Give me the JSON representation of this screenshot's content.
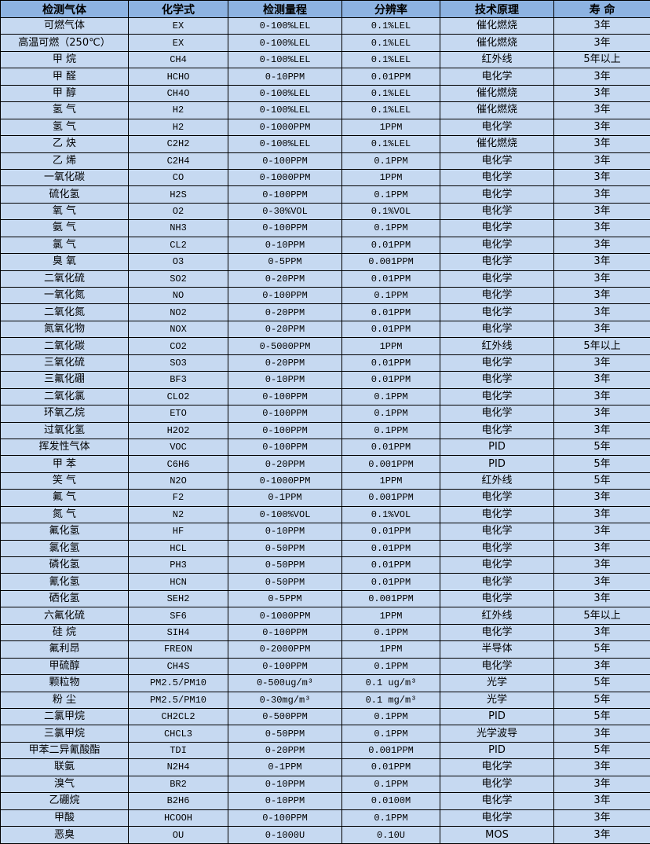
{
  "colors": {
    "header_bg": "#8db3e2",
    "row_bg": "#c6d9f1",
    "border": "#000000"
  },
  "table": {
    "headers": [
      "检测气体",
      "化学式",
      "检测量程",
      "分辨率",
      "技术原理",
      "寿 命"
    ],
    "rows": [
      [
        "可燃气体",
        "EX",
        "0-100%LEL",
        "0.1%LEL",
        "催化燃烧",
        "3年"
      ],
      [
        "高温可燃（250℃）",
        "EX",
        "0-100%LEL",
        "0.1%LEL",
        "催化燃烧",
        "3年"
      ],
      [
        "甲 烷",
        "CH4",
        "0-100%LEL",
        "0.1%LEL",
        "红外线",
        "5年以上"
      ],
      [
        "甲 醛",
        "HCHO",
        "0-10PPM",
        "0.01PPM",
        "电化学",
        "3年"
      ],
      [
        "甲 醇",
        "CH4O",
        "0-100%LEL",
        "0.1%LEL",
        "催化燃烧",
        "3年"
      ],
      [
        "氢 气",
        "H2",
        "0-100%LEL",
        "0.1%LEL",
        "催化燃烧",
        "3年"
      ],
      [
        "氢 气",
        "H2",
        "0-1000PPM",
        "1PPM",
        "电化学",
        "3年"
      ],
      [
        "乙 炔",
        "C2H2",
        "0-100%LEL",
        "0.1%LEL",
        "催化燃烧",
        "3年"
      ],
      [
        "乙 烯",
        "C2H4",
        "0-100PPM",
        "0.1PPM",
        "电化学",
        "3年"
      ],
      [
        "一氧化碳",
        "CO",
        "0-1000PPM",
        "1PPM",
        "电化学",
        "3年"
      ],
      [
        "硫化氢",
        "H2S",
        "0-100PPM",
        "0.1PPM",
        "电化学",
        "3年"
      ],
      [
        "氧 气",
        "O2",
        "0-30%VOL",
        "0.1%VOL",
        "电化学",
        "3年"
      ],
      [
        "氨 气",
        "NH3",
        "0-100PPM",
        "0.1PPM",
        "电化学",
        "3年"
      ],
      [
        "氯 气",
        "CL2",
        "0-10PPM",
        "0.01PPM",
        "电化学",
        "3年"
      ],
      [
        "臭 氧",
        "O3",
        "0-5PPM",
        "0.001PPM",
        "电化学",
        "3年"
      ],
      [
        "二氧化硫",
        "SO2",
        "0-20PPM",
        "0.01PPM",
        "电化学",
        "3年"
      ],
      [
        "一氧化氮",
        "NO",
        "0-100PPM",
        "0.1PPM",
        "电化学",
        "3年"
      ],
      [
        "二氧化氮",
        "NO2",
        "0-20PPM",
        "0.01PPM",
        "电化学",
        "3年"
      ],
      [
        "氮氧化物",
        "NOX",
        "0-20PPM",
        "0.01PPM",
        "电化学",
        "3年"
      ],
      [
        "二氧化碳",
        "CO2",
        "0-5000PPM",
        "1PPM",
        "红外线",
        "5年以上"
      ],
      [
        "三氧化硫",
        "SO3",
        "0-20PPM",
        "0.01PPM",
        "电化学",
        "3年"
      ],
      [
        "三氟化硼",
        "BF3",
        "0-10PPM",
        "0.01PPM",
        "电化学",
        "3年"
      ],
      [
        "二氧化氯",
        "CLO2",
        "0-100PPM",
        "0.1PPM",
        "电化学",
        "3年"
      ],
      [
        "环氧乙烷",
        "ETO",
        "0-100PPM",
        "0.1PPM",
        "电化学",
        "3年"
      ],
      [
        "过氧化氢",
        "H2O2",
        "0-100PPM",
        "0.1PPM",
        "电化学",
        "3年"
      ],
      [
        "挥发性气体",
        "VOC",
        "0-100PPM",
        "0.01PPM",
        "PID",
        "5年"
      ],
      [
        "甲 苯",
        "C6H6",
        "0-20PPM",
        "0.001PPM",
        "PID",
        "5年"
      ],
      [
        "笑 气",
        "N2O",
        "0-1000PPM",
        "1PPM",
        "红外线",
        "5年"
      ],
      [
        "氟 气",
        "F2",
        "0-1PPM",
        "0.001PPM",
        "电化学",
        "3年"
      ],
      [
        "氮 气",
        "N2",
        "0-100%VOL",
        "0.1%VOL",
        "电化学",
        "3年"
      ],
      [
        "氟化氢",
        "HF",
        "0-10PPM",
        "0.01PPM",
        "电化学",
        "3年"
      ],
      [
        "氯化氢",
        "HCL",
        "0-50PPM",
        "0.01PPM",
        "电化学",
        "3年"
      ],
      [
        "磷化氢",
        "PH3",
        "0-50PPM",
        "0.01PPM",
        "电化学",
        "3年"
      ],
      [
        "氰化氢",
        "HCN",
        "0-50PPM",
        "0.01PPM",
        "电化学",
        "3年"
      ],
      [
        "硒化氢",
        "SEH2",
        "0-5PPM",
        "0.001PPM",
        "电化学",
        "3年"
      ],
      [
        "六氟化硫",
        "SF6",
        "0-1000PPM",
        "1PPM",
        "红外线",
        "5年以上"
      ],
      [
        "硅 烷",
        "SIH4",
        "0-100PPM",
        "0.1PPM",
        "电化学",
        "3年"
      ],
      [
        "氟利昂",
        "FREON",
        "0-2000PPM",
        "1PPM",
        "半导体",
        "5年"
      ],
      [
        "甲硫醇",
        "CH4S",
        "0-100PPM",
        "0.1PPM",
        "电化学",
        "3年"
      ],
      [
        "颗粒物",
        "PM2.5/PM10",
        "0-500ug/m³",
        "0.1 ug/m³",
        "光学",
        "5年"
      ],
      [
        "粉 尘",
        "PM2.5/PM10",
        "0-30mg/m³",
        "0.1 mg/m³",
        "光学",
        "5年"
      ],
      [
        "二氯甲烷",
        "CH2CL2",
        "0-500PPM",
        "0.1PPM",
        "PID",
        "5年"
      ],
      [
        "三氯甲烷",
        "CHCL3",
        "0-50PPM",
        "0.1PPM",
        "光学波导",
        "3年"
      ],
      [
        "甲苯二异氰酸酯",
        "TDI",
        "0-20PPM",
        "0.001PPM",
        "PID",
        "5年"
      ],
      [
        "联氨",
        "N2H4",
        "0-1PPM",
        "0.01PPM",
        "电化学",
        "3年"
      ],
      [
        "溴气",
        "BR2",
        "0-10PPM",
        "0.1PPM",
        "电化学",
        "3年"
      ],
      [
        "乙硼烷",
        "B2H6",
        "0-10PPM",
        "0.0100M",
        "电化学",
        "3年"
      ],
      [
        "甲酸",
        "HCOOH",
        "0-100PPM",
        "0.1PPM",
        "电化学",
        "3年"
      ],
      [
        "恶臭",
        "OU",
        "0-1000U",
        "0.10U",
        "MOS",
        "3年"
      ]
    ]
  }
}
